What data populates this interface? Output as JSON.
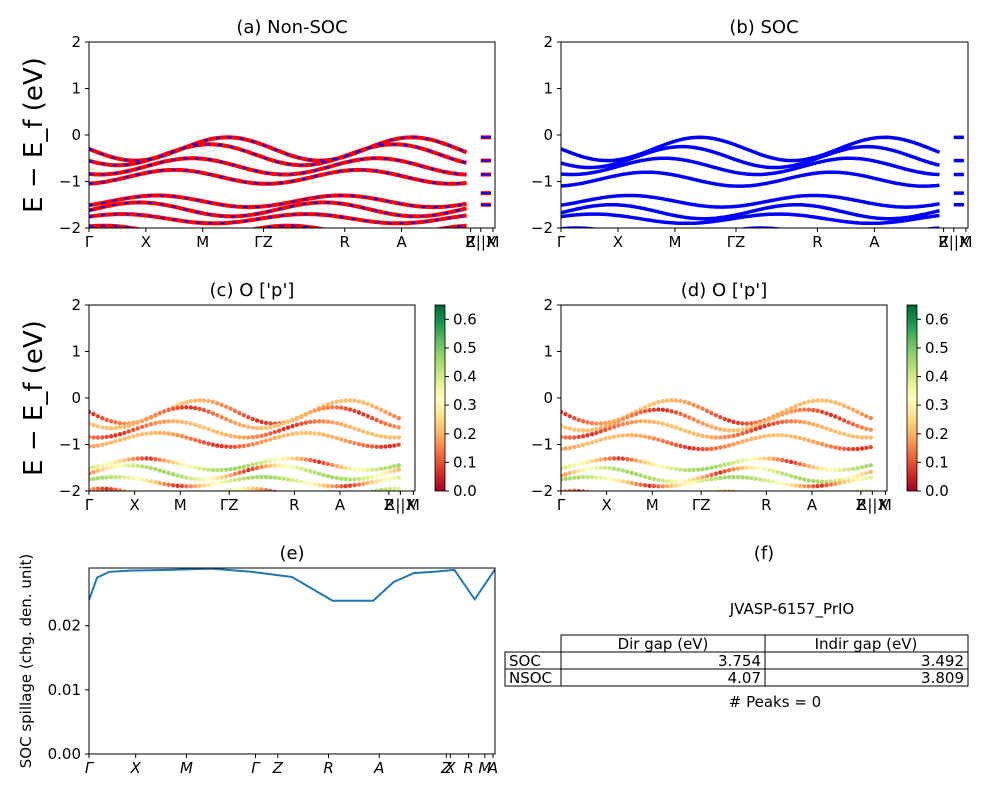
{
  "chart_data": [
    {
      "id": "a",
      "type": "line",
      "title": "(a) Non-SOC",
      "ylabel": "E − E_f (eV)",
      "ylim": [
        -2,
        2
      ],
      "yticks": [
        "2",
        "1",
        "0",
        "−1",
        "−2"
      ],
      "xticks": [
        "Γ",
        "X",
        "M",
        "ΓZ",
        "R",
        "A",
        "Z",
        "R||X",
        "M"
      ],
      "series": [
        {
          "color": "#ff0000",
          "dashed_overlay_color": "#0000ff"
        }
      ]
    },
    {
      "id": "b",
      "type": "line",
      "title": "(b) SOC",
      "ylim": [
        -2,
        2
      ],
      "yticks": [
        "2",
        "1",
        "0",
        "−1",
        "−2"
      ],
      "xticks": [
        "Γ",
        "X",
        "M",
        "ΓZ",
        "R",
        "A",
        "Z",
        "R||X",
        "M"
      ],
      "series": [
        {
          "color": "#0000ff"
        }
      ]
    },
    {
      "id": "c",
      "type": "scatter",
      "title": "(c)  O ['p']",
      "ylabel": "E − E_f (eV)",
      "ylim": [
        -2,
        2
      ],
      "yticks": [
        "2",
        "1",
        "0",
        "−1",
        "−2"
      ],
      "xticks": [
        "Γ",
        "X",
        "M",
        "ΓZ",
        "R",
        "A",
        "Z",
        "R||X",
        "M"
      ],
      "colorbar": {
        "min": 0.0,
        "max": 0.65,
        "ticks": [
          "0.6",
          "0.5",
          "0.4",
          "0.3",
          "0.2",
          "0.1",
          "0.0"
        ],
        "colormap": "RdYlGn"
      }
    },
    {
      "id": "d",
      "type": "scatter",
      "title": "(d) O ['p']",
      "ylim": [
        -2,
        2
      ],
      "yticks": [
        "2",
        "1",
        "0",
        "−1",
        "−2"
      ],
      "xticks": [
        "Γ",
        "X",
        "M",
        "ΓZ",
        "R",
        "A",
        "Z",
        "R||X",
        "M"
      ],
      "colorbar": {
        "min": 0.0,
        "max": 0.65,
        "ticks": [
          "0.6",
          "0.5",
          "0.4",
          "0.3",
          "0.2",
          "0.1",
          "0.0"
        ],
        "colormap": "RdYlGn"
      }
    },
    {
      "id": "e",
      "type": "line",
      "title": "(e)",
      "ylabel": "SOC spillage (chg. den. unit)",
      "ylim": [
        0,
        0.029
      ],
      "yticks": [
        "0.02",
        "0.01",
        "0.00"
      ],
      "xticks": [
        "Γ",
        "X",
        "M",
        "Γ",
        "Z",
        "R",
        "A",
        "Z",
        "X",
        "R",
        "M",
        "A"
      ],
      "series": [
        {
          "color": "#1f77b4",
          "x": [
            0,
            0.02,
            0.05,
            0.1,
            0.2,
            0.3,
            0.4,
            0.5,
            0.6,
            0.7,
            0.75,
            0.8,
            0.85,
            0.9,
            0.95,
            1.0
          ],
          "values": [
            0.024,
            0.0275,
            0.0284,
            0.0286,
            0.0287,
            0.0289,
            0.0284,
            0.0276,
            0.0239,
            0.0239,
            0.0268,
            0.0282,
            0.0284,
            0.0287,
            0.0241,
            0.0288
          ]
        }
      ]
    },
    {
      "id": "f",
      "type": "table",
      "title": "(f)",
      "caption": "JVASP-6157_PrIO",
      "columns": [
        "Dir gap (eV)",
        "Indir gap (eV)"
      ],
      "rows": [
        {
          "label": "SOC",
          "values": [
            "3.754",
            "3.492"
          ]
        },
        {
          "label": "NSOC",
          "values": [
            "4.07",
            "3.809"
          ]
        }
      ],
      "footer": "# Peaks = 0"
    }
  ]
}
